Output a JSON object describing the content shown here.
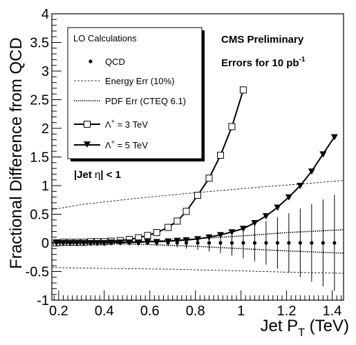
{
  "chart_data": {
    "type": "line",
    "xlabel_main": "Jet P",
    "xlabel_sub": "T",
    "xlabel_unit": " (TeV)",
    "ylabel": "Fractional Difference from QCD",
    "xlim": [
      0.17,
      1.45
    ],
    "ylim": [
      -1,
      4
    ],
    "x_ticks": [
      "0.2",
      "0.4",
      "0.6",
      "0.8",
      "1",
      "1.2",
      "1.4"
    ],
    "y_ticks": [
      "-1",
      "-0.5",
      "0",
      "0.5",
      "1",
      "1.5",
      "2",
      "2.5",
      "3",
      "3.5",
      "4"
    ],
    "grid": false,
    "legend_position": "top-left",
    "legend": {
      "title": "LO Calculations",
      "entries": [
        {
          "key": "qcd",
          "label": "QCD"
        },
        {
          "key": "energy",
          "label": "Energy Err (10%)"
        },
        {
          "key": "pdf",
          "label": "PDF Err (CTEQ 6.1)"
        },
        {
          "key": "lam3",
          "label_prefix": "Λ",
          "label_sup": "+",
          "label_suffix": " = 3 TeV"
        },
        {
          "key": "lam5",
          "label_prefix": "Λ",
          "label_sup": "+",
          "label_suffix": " = 5 TeV"
        }
      ]
    },
    "annotations": {
      "cms": "CMS Preliminary",
      "errors_main": "Errors for 10 pb",
      "errors_sup": "-1",
      "eta_a": "|Jet ",
      "eta_b": "η",
      "eta_c": "| < 1"
    },
    "series": [
      {
        "key": "qcd",
        "name": "QCD",
        "x": [
          0.19,
          0.22,
          0.25,
          0.28,
          0.31,
          0.34,
          0.37,
          0.4,
          0.43,
          0.47,
          0.51,
          0.55,
          0.59,
          0.63,
          0.68,
          0.72,
          0.76,
          0.81,
          0.86,
          0.91,
          0.96,
          1.01,
          1.06,
          1.11,
          1.16,
          1.21,
          1.26,
          1.31,
          1.36,
          1.41
        ],
        "y": [
          0,
          0,
          0,
          0,
          0,
          0,
          0,
          0,
          0,
          0,
          0,
          0,
          0,
          0,
          0,
          0,
          0,
          0,
          0,
          0,
          0,
          0,
          0,
          0,
          0,
          0,
          0,
          0,
          0,
          0
        ],
        "yerr": [
          0.01,
          0.01,
          0.01,
          0.01,
          0.01,
          0.01,
          0.01,
          0.01,
          0.015,
          0.02,
          0.025,
          0.03,
          0.04,
          0.05,
          0.06,
          0.08,
          0.1,
          0.12,
          0.15,
          0.18,
          0.22,
          0.27,
          0.32,
          0.38,
          0.45,
          0.52,
          0.6,
          0.68,
          0.76,
          0.84
        ]
      },
      {
        "key": "lam3",
        "name": "Λ+ = 3 TeV",
        "x": [
          0.19,
          0.22,
          0.25,
          0.28,
          0.31,
          0.34,
          0.37,
          0.4,
          0.43,
          0.47,
          0.51,
          0.55,
          0.59,
          0.63,
          0.68,
          0.72,
          0.76,
          0.81,
          0.86,
          0.91,
          0.96,
          1.01
        ],
        "y": [
          0.0,
          0.01,
          0.01,
          0.01,
          0.01,
          0.02,
          0.02,
          0.02,
          0.03,
          0.04,
          0.06,
          0.09,
          0.13,
          0.18,
          0.27,
          0.38,
          0.55,
          0.83,
          1.13,
          1.53,
          2.03,
          2.67
        ]
      },
      {
        "key": "lam5",
        "name": "Λ+ = 5 TeV",
        "x": [
          0.19,
          0.22,
          0.25,
          0.28,
          0.31,
          0.34,
          0.37,
          0.4,
          0.43,
          0.47,
          0.51,
          0.55,
          0.59,
          0.63,
          0.68,
          0.72,
          0.76,
          0.81,
          0.86,
          0.91,
          0.96,
          1.01,
          1.06,
          1.11,
          1.16,
          1.21,
          1.26,
          1.31,
          1.36,
          1.41
        ],
        "y": [
          0.0,
          0.0,
          0.0,
          0.0,
          0.0,
          0.0,
          0.0,
          0.0,
          0.01,
          0.01,
          0.01,
          0.01,
          0.02,
          0.02,
          0.03,
          0.04,
          0.05,
          0.07,
          0.1,
          0.14,
          0.19,
          0.25,
          0.35,
          0.47,
          0.62,
          0.8,
          1.0,
          1.25,
          1.55,
          1.85
        ]
      },
      {
        "key": "energy_up",
        "x": [
          0.17,
          0.3,
          0.5,
          0.7,
          0.9,
          1.1,
          1.3,
          1.45
        ],
        "y": [
          0.58,
          0.67,
          0.76,
          0.84,
          0.91,
          0.98,
          1.04,
          1.09
        ]
      },
      {
        "key": "energy_down",
        "x": [
          0.17,
          0.3,
          0.5,
          0.7,
          0.9,
          1.1,
          1.3,
          1.45
        ],
        "y": [
          -0.43,
          -0.44,
          -0.45,
          -0.46,
          -0.48,
          -0.5,
          -0.52,
          -0.53
        ]
      },
      {
        "key": "pdf_up",
        "x": [
          0.17,
          0.4,
          0.6,
          0.8,
          1.0,
          1.2,
          1.45
        ],
        "y": [
          0.0,
          0.01,
          0.03,
          0.07,
          0.12,
          0.18,
          0.23
        ]
      },
      {
        "key": "pdf_down",
        "x": [
          0.17,
          0.4,
          0.6,
          0.8,
          1.0,
          1.2,
          1.45
        ],
        "y": [
          0.0,
          -0.01,
          -0.03,
          -0.06,
          -0.1,
          -0.14,
          -0.18
        ]
      }
    ]
  }
}
